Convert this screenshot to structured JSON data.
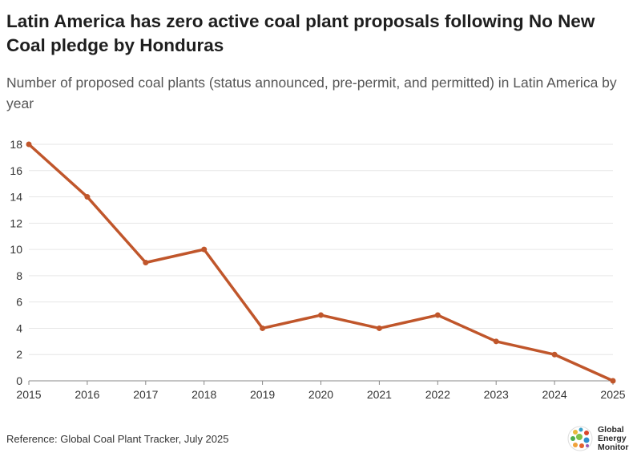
{
  "title": "Latin America has zero active coal plant proposals following No New Coal pledge by Honduras",
  "subtitle": "Number of proposed coal plants (status announced, pre-permit, and permitted) in Latin America by year",
  "footer": {
    "reference": "Reference: Global Coal Plant Tracker, July 2025"
  },
  "logo": {
    "line1": "Global",
    "line2": "Energy",
    "line3": "Monitor",
    "icon": "globe-icon"
  },
  "colors": {
    "line": "#c0562b",
    "grid": "#e6e6e6",
    "axis": "#888888"
  },
  "chart_data": {
    "type": "line",
    "title": "Latin America has zero active coal plant proposals following No New Coal pledge by Honduras",
    "xlabel": "",
    "ylabel": "",
    "x": [
      2015,
      2016,
      2017,
      2018,
      2019,
      2020,
      2021,
      2022,
      2023,
      2024,
      2025
    ],
    "series": [
      {
        "name": "Proposed coal plants",
        "values": [
          18,
          14,
          9,
          10,
          4,
          5,
          4,
          5,
          3,
          2,
          0
        ]
      }
    ],
    "xticks": [
      "2015",
      "2016",
      "2017",
      "2018",
      "2019",
      "2020",
      "2021",
      "2022",
      "2023",
      "2024",
      "2025"
    ],
    "yticks": [
      "0",
      "2",
      "4",
      "6",
      "8",
      "10",
      "12",
      "14",
      "16",
      "18"
    ],
    "ylim": [
      0,
      18
    ],
    "grid": true,
    "legend": "none"
  }
}
